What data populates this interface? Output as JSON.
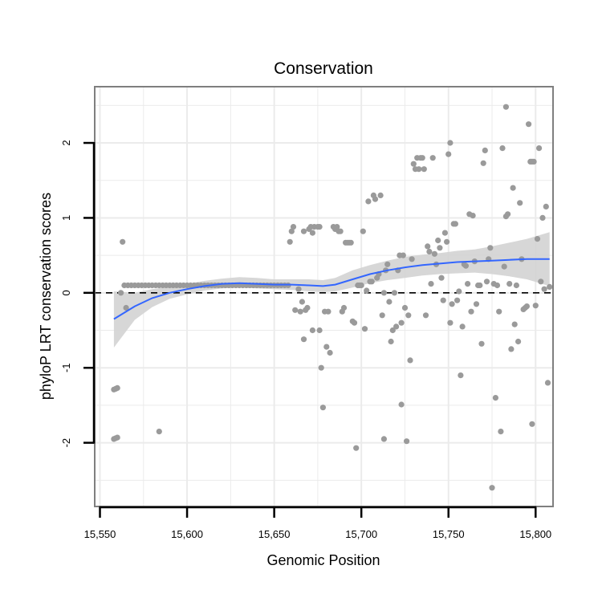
{
  "chart_data": {
    "type": "scatter",
    "title": "Conservation",
    "xlabel": "Genomic Position",
    "ylabel": "phyloP LRT conservation scores",
    "xlim": [
      15547,
      15810
    ],
    "ylim": [
      -2.85,
      2.75
    ],
    "x_ticks": [
      15550,
      15600,
      15650,
      15700,
      15750,
      15800
    ],
    "x_tick_labels": [
      "15,550",
      "15,600",
      "15,650",
      "15,700",
      "15,750",
      "15,800"
    ],
    "y_ticks": [
      2,
      1,
      0,
      -1,
      -2
    ],
    "y_tick_labels": [
      "2",
      "1",
      "0",
      "-1",
      "-2"
    ],
    "grid": true,
    "reference_line": {
      "y": 0,
      "style": "dashed"
    },
    "colors": {
      "points": "#9a9a9a",
      "smooth_line": "#3366ff",
      "confidence_band": "#d3d3d3",
      "grid": "#ebebeb",
      "panel_border": "#7f7f7f",
      "reference_line": "#000000"
    },
    "series": [
      {
        "name": "phyloP scores",
        "points": [
          [
            15558,
            -1.95
          ],
          [
            15559,
            -1.94
          ],
          [
            15560,
            -1.93
          ],
          [
            15558,
            -1.29
          ],
          [
            15559,
            -1.28
          ],
          [
            15560,
            -1.27
          ],
          [
            15562,
            0.0
          ],
          [
            15563,
            0.68
          ],
          [
            15565,
            -0.2
          ],
          [
            15564,
            0.1
          ],
          [
            15566,
            0.1
          ],
          [
            15568,
            0.1
          ],
          [
            15570,
            0.1
          ],
          [
            15572,
            0.1
          ],
          [
            15574,
            0.1
          ],
          [
            15576,
            0.1
          ],
          [
            15578,
            0.1
          ],
          [
            15580,
            0.1
          ],
          [
            15582,
            0.1
          ],
          [
            15584,
            0.1
          ],
          [
            15586,
            0.1
          ],
          [
            15588,
            0.1
          ],
          [
            15590,
            0.1
          ],
          [
            15592,
            0.1
          ],
          [
            15594,
            0.1
          ],
          [
            15596,
            0.1
          ],
          [
            15598,
            0.1
          ],
          [
            15600,
            0.1
          ],
          [
            15602,
            0.1
          ],
          [
            15604,
            0.1
          ],
          [
            15606,
            0.1
          ],
          [
            15608,
            0.1
          ],
          [
            15610,
            0.1
          ],
          [
            15612,
            0.1
          ],
          [
            15614,
            0.1
          ],
          [
            15616,
            0.1
          ],
          [
            15618,
            0.1
          ],
          [
            15620,
            0.1
          ],
          [
            15622,
            0.1
          ],
          [
            15624,
            0.1
          ],
          [
            15626,
            0.1
          ],
          [
            15628,
            0.1
          ],
          [
            15630,
            0.1
          ],
          [
            15632,
            0.1
          ],
          [
            15634,
            0.1
          ],
          [
            15636,
            0.1
          ],
          [
            15638,
            0.1
          ],
          [
            15640,
            0.1
          ],
          [
            15642,
            0.1
          ],
          [
            15644,
            0.1
          ],
          [
            15646,
            0.1
          ],
          [
            15648,
            0.1
          ],
          [
            15650,
            0.1
          ],
          [
            15652,
            0.1
          ],
          [
            15654,
            0.1
          ],
          [
            15656,
            0.1
          ],
          [
            15658,
            0.1
          ],
          [
            15584,
            -1.85
          ],
          [
            15659,
            0.68
          ],
          [
            15660,
            0.82
          ],
          [
            15661,
            0.88
          ],
          [
            15662,
            -0.23
          ],
          [
            15664,
            0.05
          ],
          [
            15665,
            -0.25
          ],
          [
            15666,
            -0.12
          ],
          [
            15667,
            0.82
          ],
          [
            15667,
            -0.62
          ],
          [
            15668,
            -0.23
          ],
          [
            15669,
            -0.2
          ],
          [
            15670,
            0.85
          ],
          [
            15671,
            0.88
          ],
          [
            15672,
            0.8
          ],
          [
            15672,
            -0.5
          ],
          [
            15673,
            0.88
          ],
          [
            15675,
            0.88
          ],
          [
            15676,
            0.88
          ],
          [
            15676,
            -0.5
          ],
          [
            15677,
            -1.0
          ],
          [
            15678,
            -1.53
          ],
          [
            15679,
            -0.25
          ],
          [
            15680,
            -0.72
          ],
          [
            15681,
            -0.25
          ],
          [
            15682,
            -0.8
          ],
          [
            15684,
            0.88
          ],
          [
            15685,
            0.85
          ],
          [
            15686,
            0.88
          ],
          [
            15687,
            0.82
          ],
          [
            15688,
            0.82
          ],
          [
            15689,
            -0.25
          ],
          [
            15690,
            -0.2
          ],
          [
            15691,
            0.67
          ],
          [
            15692,
            0.67
          ],
          [
            15693,
            0.67
          ],
          [
            15694,
            0.67
          ],
          [
            15695,
            -0.38
          ],
          [
            15696,
            -0.4
          ],
          [
            15697,
            -2.07
          ],
          [
            15698,
            0.1
          ],
          [
            15699,
            0.1
          ],
          [
            15700,
            0.1
          ],
          [
            15701,
            0.82
          ],
          [
            15702,
            -0.48
          ],
          [
            15703,
            0.03
          ],
          [
            15704,
            1.22
          ],
          [
            15705,
            0.15
          ],
          [
            15706,
            0.15
          ],
          [
            15707,
            1.3
          ],
          [
            15708,
            1.25
          ],
          [
            15709,
            0.2
          ],
          [
            15710,
            0.25
          ],
          [
            15711,
            1.3
          ],
          [
            15712,
            -0.3
          ],
          [
            15713,
            -1.95
          ],
          [
            15713,
            0.0
          ],
          [
            15714,
            0.3
          ],
          [
            15715,
            0.38
          ],
          [
            15716,
            -0.12
          ],
          [
            15717,
            -0.65
          ],
          [
            15718,
            -0.5
          ],
          [
            15719,
            0.0
          ],
          [
            15720,
            -0.45
          ],
          [
            15721,
            0.3
          ],
          [
            15722,
            0.5
          ],
          [
            15723,
            -1.49
          ],
          [
            15723,
            -0.4
          ],
          [
            15724,
            0.5
          ],
          [
            15725,
            -0.2
          ],
          [
            15726,
            -1.98
          ],
          [
            15727,
            -0.3
          ],
          [
            15728,
            -0.9
          ],
          [
            15729,
            0.45
          ],
          [
            15730,
            1.72
          ],
          [
            15731,
            1.65
          ],
          [
            15732,
            1.8
          ],
          [
            15733,
            1.65
          ],
          [
            15734,
            1.8
          ],
          [
            15735,
            1.8
          ],
          [
            15736,
            1.65
          ],
          [
            15737,
            -0.3
          ],
          [
            15738,
            0.62
          ],
          [
            15739,
            0.55
          ],
          [
            15740,
            0.12
          ],
          [
            15741,
            1.8
          ],
          [
            15742,
            0.52
          ],
          [
            15743,
            0.38
          ],
          [
            15744,
            0.7
          ],
          [
            15745,
            0.6
          ],
          [
            15746,
            0.2
          ],
          [
            15747,
            -0.1
          ],
          [
            15748,
            0.8
          ],
          [
            15749,
            0.68
          ],
          [
            15750,
            1.85
          ],
          [
            15751,
            2.0
          ],
          [
            15751,
            -0.4
          ],
          [
            15752,
            -0.15
          ],
          [
            15753,
            0.92
          ],
          [
            15754,
            0.92
          ],
          [
            15755,
            -0.1
          ],
          [
            15756,
            0.02
          ],
          [
            15757,
            -1.1
          ],
          [
            15758,
            -0.45
          ],
          [
            15759,
            0.38
          ],
          [
            15760,
            0.36
          ],
          [
            15761,
            0.12
          ],
          [
            15762,
            1.05
          ],
          [
            15763,
            -0.25
          ],
          [
            15764,
            1.03
          ],
          [
            15765,
            0.42
          ],
          [
            15766,
            -0.15
          ],
          [
            15767,
            0.1
          ],
          [
            15768,
            0.1
          ],
          [
            15769,
            -0.68
          ],
          [
            15770,
            1.73
          ],
          [
            15771,
            1.9
          ],
          [
            15772,
            0.15
          ],
          [
            15773,
            0.45
          ],
          [
            15774,
            0.6
          ],
          [
            15775,
            -2.6
          ],
          [
            15776,
            0.12
          ],
          [
            15777,
            -1.4
          ],
          [
            15778,
            0.1
          ],
          [
            15779,
            -0.25
          ],
          [
            15780,
            -1.85
          ],
          [
            15781,
            1.93
          ],
          [
            15782,
            0.35
          ],
          [
            15783,
            1.02
          ],
          [
            15783,
            2.48
          ],
          [
            15784,
            1.05
          ],
          [
            15785,
            0.12
          ],
          [
            15786,
            -0.75
          ],
          [
            15787,
            1.4
          ],
          [
            15788,
            -0.42
          ],
          [
            15789,
            0.1
          ],
          [
            15790,
            -0.65
          ],
          [
            15791,
            1.2
          ],
          [
            15792,
            0.45
          ],
          [
            15793,
            -0.22
          ],
          [
            15794,
            -0.2
          ],
          [
            15795,
            -0.18
          ],
          [
            15796,
            2.25
          ],
          [
            15797,
            1.75
          ],
          [
            15798,
            1.75
          ],
          [
            15798,
            -1.75
          ],
          [
            15799,
            1.75
          ],
          [
            15800,
            -0.17
          ],
          [
            15801,
            0.72
          ],
          [
            15802,
            1.93
          ],
          [
            15803,
            0.15
          ],
          [
            15804,
            1.0
          ],
          [
            15805,
            0.05
          ],
          [
            15806,
            1.15
          ],
          [
            15807,
            -1.2
          ],
          [
            15808,
            0.08
          ]
        ]
      },
      {
        "name": "loess fit",
        "x": [
          15558,
          15570,
          15580,
          15590,
          15600,
          15610,
          15620,
          15630,
          15640,
          15650,
          15660,
          15670,
          15678,
          15685,
          15695,
          15705,
          15715,
          15725,
          15735,
          15745,
          15755,
          15765,
          15775,
          15785,
          15795,
          15808
        ],
        "y": [
          -0.35,
          -0.18,
          -0.07,
          0.0,
          0.05,
          0.09,
          0.12,
          0.13,
          0.12,
          0.11,
          0.11,
          0.1,
          0.09,
          0.11,
          0.18,
          0.25,
          0.3,
          0.34,
          0.37,
          0.39,
          0.41,
          0.42,
          0.43,
          0.44,
          0.45,
          0.45
        ],
        "lower": [
          -0.73,
          -0.36,
          -0.19,
          -0.08,
          -0.02,
          0.03,
          0.06,
          0.07,
          0.06,
          0.05,
          0.04,
          0.02,
          0.01,
          0.02,
          0.07,
          0.13,
          0.17,
          0.2,
          0.23,
          0.25,
          0.26,
          0.27,
          0.25,
          0.22,
          0.18,
          0.09
        ],
        "upper": [
          0.02,
          0.0,
          0.05,
          0.08,
          0.12,
          0.16,
          0.19,
          0.21,
          0.2,
          0.18,
          0.18,
          0.18,
          0.17,
          0.2,
          0.3,
          0.37,
          0.43,
          0.48,
          0.51,
          0.53,
          0.56,
          0.58,
          0.62,
          0.67,
          0.72,
          0.81
        ]
      }
    ]
  }
}
